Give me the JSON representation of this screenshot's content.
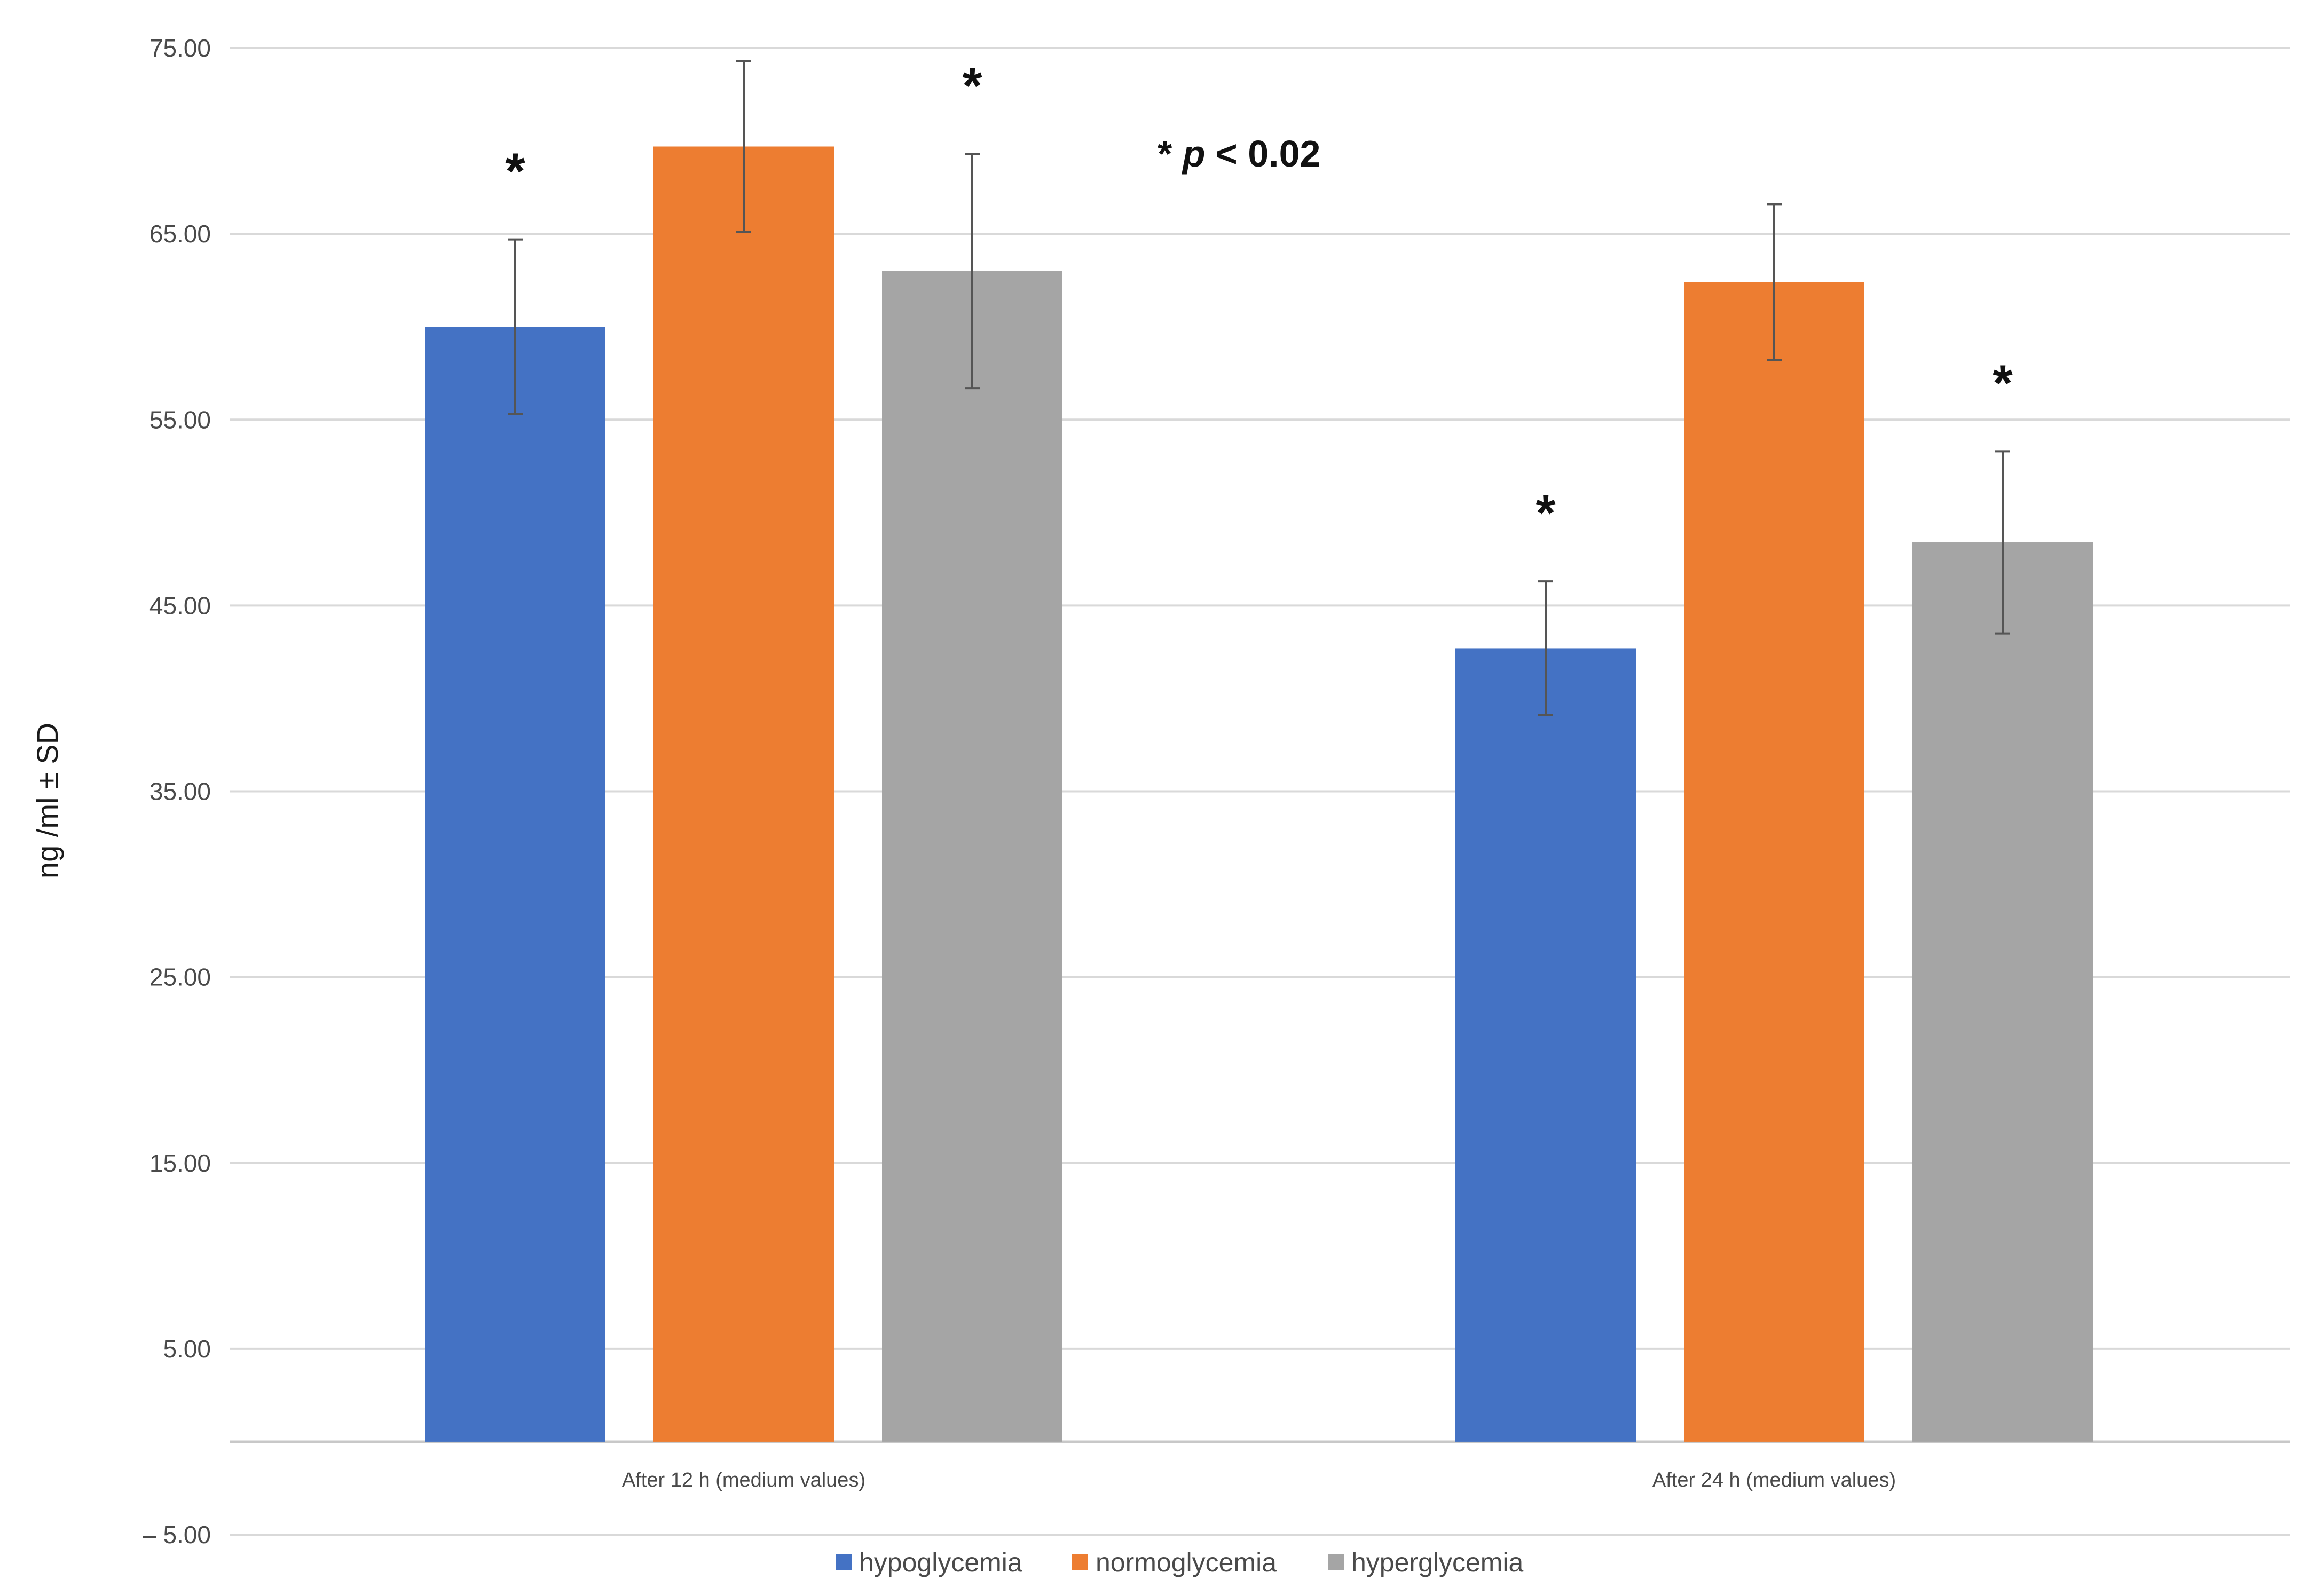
{
  "chart_data": {
    "type": "bar",
    "title": "",
    "xlabel": "",
    "ylabel": "ng /ml ± SD",
    "ylim": [
      -5,
      75
    ],
    "yticks": [
      -5,
      5,
      15,
      25,
      35,
      45,
      55,
      65,
      75
    ],
    "ytick_labels": [
      "– 5.00",
      "5.00",
      "15.00",
      "25.00",
      "35.00",
      "45.00",
      "55.00",
      "65.00",
      "75.00"
    ],
    "grid": true,
    "categories": [
      "After 12 h (medium values)",
      "After 24 h (medium values)"
    ],
    "series": [
      {
        "name": "hypoglycemia",
        "color": "#4472C4",
        "values": [
          60.0,
          42.7
        ],
        "errors": [
          4.7,
          3.6
        ],
        "significant": [
          true,
          true
        ]
      },
      {
        "name": "normoglycemia",
        "color": "#ED7D31",
        "values": [
          69.7,
          62.4
        ],
        "errors": [
          4.6,
          4.2
        ],
        "significant": [
          false,
          false
        ]
      },
      {
        "name": "hyperglycemia",
        "color": "#A5A5A5",
        "values": [
          63.0,
          48.4
        ],
        "errors": [
          6.3,
          4.9
        ],
        "significant": [
          true,
          true
        ]
      }
    ],
    "significance_marker": "*",
    "annotation": {
      "star": "*",
      "p_symbol": "p",
      "rest": "< 0.02"
    },
    "legend_position": "bottom-center"
  }
}
